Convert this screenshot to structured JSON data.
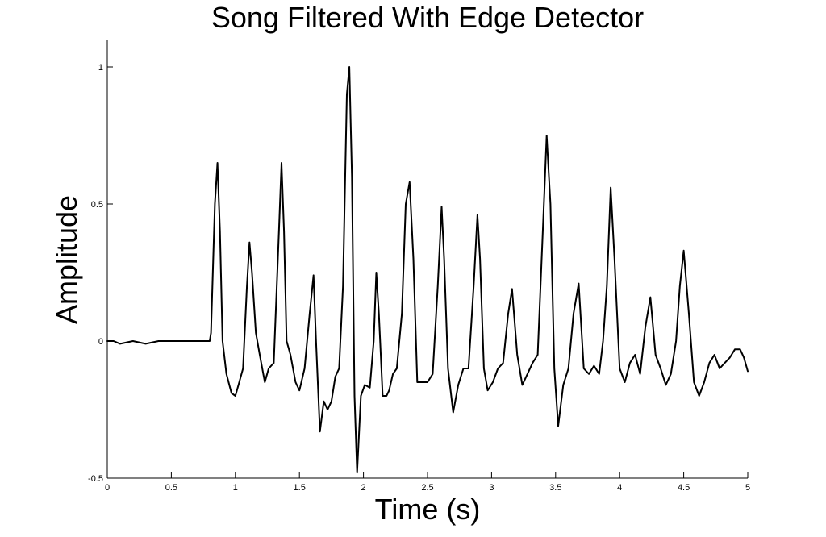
{
  "chart_data": {
    "type": "line",
    "title": "Song Filtered With Edge Detector",
    "xlabel": "Time (s)",
    "ylabel": "Amplitude",
    "xlim": [
      0,
      5
    ],
    "ylim": [
      -0.5,
      1.1
    ],
    "x_ticks": [
      0,
      0.5,
      1,
      1.5,
      2,
      2.5,
      3,
      3.5,
      4,
      4.5,
      5
    ],
    "x_tick_labels": [
      "0",
      "0.5",
      "1",
      "1.5",
      "2",
      "2.5",
      "3",
      "3.5",
      "4",
      "4.5",
      "5"
    ],
    "y_ticks": [
      -0.5,
      0,
      0.5,
      1
    ],
    "y_tick_labels": [
      "-0.5",
      "0",
      "0.5",
      "1"
    ],
    "grid": false,
    "series": [
      {
        "color": "#000000",
        "x": [
          0,
          0.05,
          0.1,
          0.2,
          0.3,
          0.4,
          0.5,
          0.6,
          0.7,
          0.8,
          0.81,
          0.84,
          0.86,
          0.88,
          0.9,
          0.93,
          0.97,
          1.0,
          1.03,
          1.06,
          1.09,
          1.11,
          1.13,
          1.16,
          1.19,
          1.23,
          1.26,
          1.3,
          1.34,
          1.36,
          1.38,
          1.4,
          1.43,
          1.47,
          1.5,
          1.54,
          1.58,
          1.61,
          1.63,
          1.66,
          1.69,
          1.72,
          1.75,
          1.78,
          1.81,
          1.84,
          1.87,
          1.89,
          1.91,
          1.93,
          1.95,
          1.98,
          2.01,
          2.05,
          2.08,
          2.1,
          2.12,
          2.15,
          2.18,
          2.2,
          2.23,
          2.26,
          2.3,
          2.33,
          2.36,
          2.39,
          2.42,
          2.46,
          2.5,
          2.54,
          2.58,
          2.61,
          2.63,
          2.66,
          2.7,
          2.74,
          2.78,
          2.82,
          2.86,
          2.89,
          2.91,
          2.94,
          2.97,
          3.01,
          3.05,
          3.09,
          3.13,
          3.16,
          3.2,
          3.24,
          3.28,
          3.32,
          3.36,
          3.4,
          3.43,
          3.46,
          3.49,
          3.52,
          3.56,
          3.6,
          3.64,
          3.68,
          3.72,
          3.76,
          3.8,
          3.84,
          3.87,
          3.9,
          3.93,
          3.96,
          4.0,
          4.04,
          4.08,
          4.12,
          4.16,
          4.2,
          4.24,
          4.28,
          4.32,
          4.36,
          4.4,
          4.44,
          4.47,
          4.5,
          4.54,
          4.58,
          4.62,
          4.66,
          4.7,
          4.74,
          4.78,
          4.82,
          4.86,
          4.9,
          4.94,
          4.97,
          5.0
        ],
        "y": [
          0.0,
          0.0,
          -0.01,
          0.0,
          -0.01,
          0.0,
          0.0,
          0.0,
          0.0,
          0.0,
          0.03,
          0.5,
          0.65,
          0.4,
          0.0,
          -0.12,
          -0.19,
          -0.2,
          -0.15,
          -0.1,
          0.2,
          0.36,
          0.25,
          0.03,
          -0.05,
          -0.15,
          -0.1,
          -0.08,
          0.4,
          0.65,
          0.4,
          0.0,
          -0.05,
          -0.15,
          -0.18,
          -0.1,
          0.1,
          0.24,
          0.0,
          -0.33,
          -0.22,
          -0.25,
          -0.22,
          -0.13,
          -0.1,
          0.2,
          0.9,
          1.0,
          0.6,
          -0.2,
          -0.48,
          -0.2,
          -0.16,
          -0.17,
          0.0,
          0.25,
          0.1,
          -0.2,
          -0.2,
          -0.18,
          -0.12,
          -0.1,
          0.1,
          0.5,
          0.58,
          0.3,
          -0.15,
          -0.15,
          -0.15,
          -0.12,
          0.2,
          0.49,
          0.3,
          -0.1,
          -0.26,
          -0.16,
          -0.1,
          -0.1,
          0.2,
          0.46,
          0.3,
          -0.1,
          -0.18,
          -0.15,
          -0.1,
          -0.08,
          0.1,
          0.19,
          -0.05,
          -0.16,
          -0.12,
          -0.08,
          -0.05,
          0.4,
          0.75,
          0.5,
          -0.1,
          -0.31,
          -0.16,
          -0.1,
          0.1,
          0.21,
          -0.1,
          -0.12,
          -0.09,
          -0.12,
          0.0,
          0.2,
          0.56,
          0.3,
          -0.1,
          -0.15,
          -0.08,
          -0.05,
          -0.12,
          0.05,
          0.16,
          -0.05,
          -0.1,
          -0.16,
          -0.12,
          0.0,
          0.2,
          0.33,
          0.1,
          -0.15,
          -0.2,
          -0.15,
          -0.08,
          -0.05,
          -0.1,
          -0.08,
          -0.06,
          -0.03,
          -0.03,
          -0.06,
          -0.11
        ]
      }
    ]
  }
}
